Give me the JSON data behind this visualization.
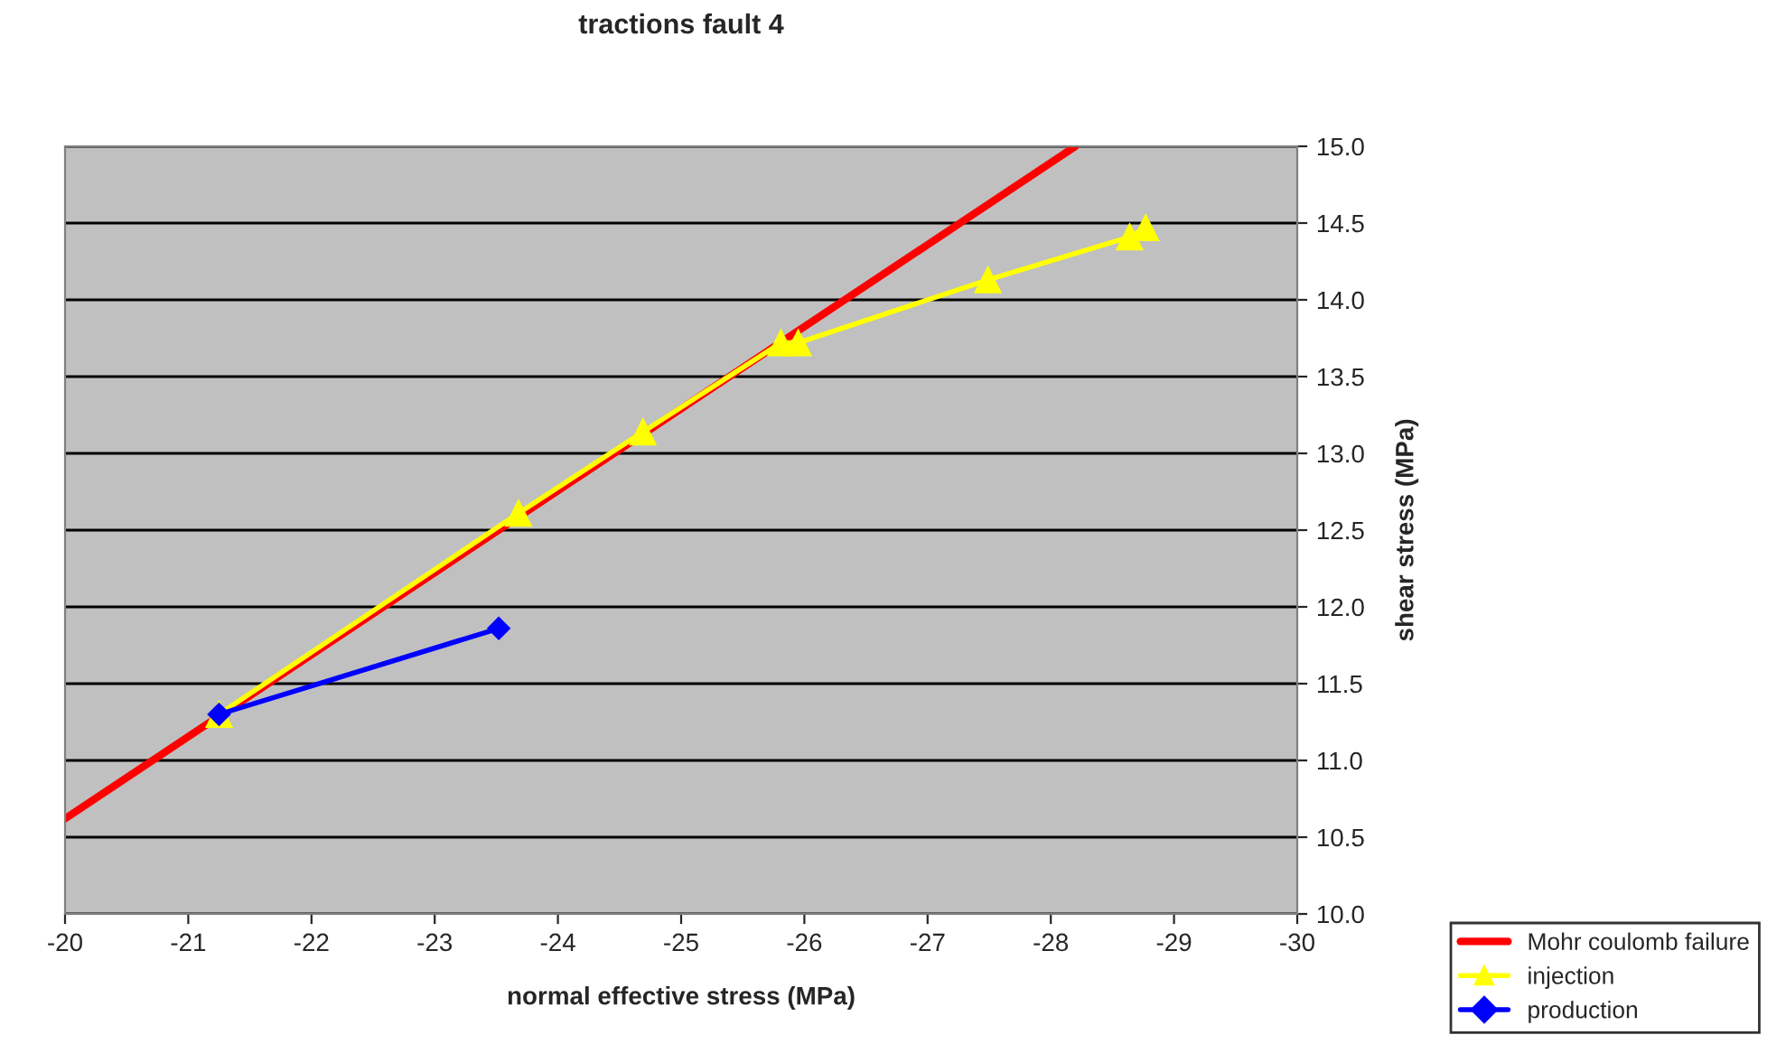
{
  "chart_data": {
    "type": "line",
    "title": "tractions fault 4",
    "xlabel": "normal effective stress (MPa)",
    "ylabel": "shear stress (MPa)",
    "xlim": [
      -20,
      -30
    ],
    "xticks": [
      -20,
      -21,
      -22,
      -23,
      -24,
      -25,
      -26,
      -27,
      -28,
      -29,
      -30
    ],
    "ylim": [
      10,
      15
    ],
    "yticks": [
      {
        "value": 10,
        "label": "10.0"
      },
      {
        "value": 10.5,
        "label": "10.5"
      },
      {
        "value": 11,
        "label": "11.0"
      },
      {
        "value": 11.5,
        "label": "11.5"
      },
      {
        "value": 12,
        "label": "12.0"
      },
      {
        "value": 12.5,
        "label": "12.5"
      },
      {
        "value": 13,
        "label": "13.0"
      },
      {
        "value": 13.5,
        "label": "13.5"
      },
      {
        "value": 14,
        "label": "14.0"
      },
      {
        "value": 14.5,
        "label": "14.5"
      },
      {
        "value": 15,
        "label": "15.0"
      }
    ],
    "grid": "y",
    "legend": "bottom right",
    "series": [
      {
        "name": "Mohr coulomb failure",
        "color": "#ff0000",
        "marker": "none",
        "x": [
          -20,
          -28.2
        ],
        "values": [
          10.62,
          15.0
        ]
      },
      {
        "name": "injection",
        "color": "#ffff00",
        "marker": "triangle",
        "x": [
          -21.25,
          -23.68,
          -24.69,
          -25.81,
          -25.95,
          -27.49,
          -28.64,
          -28.77
        ],
        "values": [
          11.3,
          12.61,
          13.14,
          13.72,
          13.72,
          14.13,
          14.41,
          14.47
        ]
      },
      {
        "name": "production",
        "color": "#0000ff",
        "marker": "diamond",
        "x": [
          -21.25,
          -23.52
        ],
        "values": [
          11.3,
          11.86
        ]
      }
    ]
  }
}
